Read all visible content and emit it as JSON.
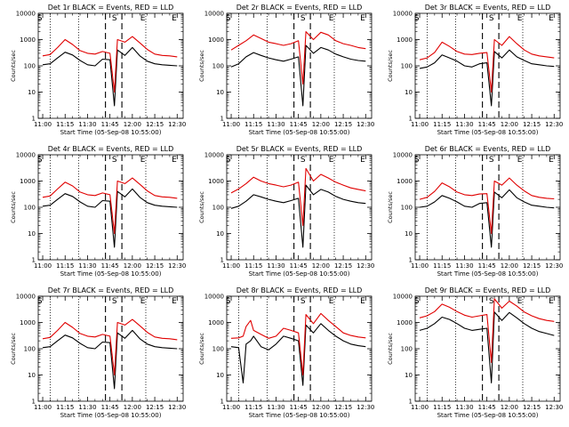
{
  "figure": {
    "colors": {
      "events": "#000000",
      "lld": "#e00000",
      "markers": "#000000"
    },
    "marker_labels": {
      "start": "S",
      "end": "E",
      "interval_start": "S",
      "interval_end": "E"
    }
  },
  "chart_data": [
    {
      "type": "line",
      "title": "Det 1r BLACK = Events, RED = LLD",
      "xlabel": "Start Time (05-Sep-08 10:55:00)",
      "ylabel": "Counts/sec",
      "log_y": true,
      "ylim": [
        1,
        10000
      ],
      "xticks": [
        "11:00",
        "11:15",
        "11:30",
        "11:45",
        "12:00",
        "12:15",
        "12:30"
      ],
      "yticks": [
        "1",
        "10",
        "100",
        "1000",
        "10000"
      ],
      "x": [
        "11:00",
        "11:05",
        "11:10",
        "11:15",
        "11:20",
        "11:25",
        "11:30",
        "11:35",
        "11:40",
        "11:45",
        "11:48",
        "11:50",
        "11:55",
        "12:00",
        "12:05",
        "12:10",
        "12:15",
        "12:20",
        "12:25",
        "12:30"
      ],
      "series": [
        {
          "name": "Events",
          "values": [
            110,
            120,
            200,
            330,
            260,
            160,
            110,
            100,
            180,
            170,
            3,
            400,
            250,
            500,
            240,
            150,
            120,
            110,
            105,
            100
          ]
        },
        {
          "name": "LLD",
          "values": [
            240,
            270,
            500,
            1000,
            650,
            380,
            300,
            280,
            350,
            300,
            10,
            1000,
            800,
            1300,
            750,
            420,
            280,
            250,
            240,
            220
          ]
        }
      ]
    },
    {
      "type": "line",
      "title": "Det 2r BLACK = Events, RED = LLD",
      "xlabel": "Start Time (05-Sep-08 10:55:00)",
      "ylabel": "Counts/sec",
      "log_y": true,
      "ylim": [
        1,
        10000
      ],
      "xticks": [
        "11:00",
        "11:15",
        "11:30",
        "11:45",
        "12:00",
        "12:15",
        "12:30"
      ],
      "yticks": [
        "1",
        "10",
        "100",
        "1000",
        "10000"
      ],
      "x": [
        "11:00",
        "11:05",
        "11:10",
        "11:15",
        "11:20",
        "11:25",
        "11:30",
        "11:35",
        "11:40",
        "11:45",
        "11:48",
        "11:50",
        "11:55",
        "12:00",
        "12:05",
        "12:10",
        "12:15",
        "12:20",
        "12:25",
        "12:30"
      ],
      "series": [
        {
          "name": "Events",
          "values": [
            90,
            120,
            220,
            320,
            250,
            200,
            170,
            150,
            180,
            220,
            3,
            600,
            300,
            500,
            400,
            280,
            220,
            180,
            160,
            150
          ]
        },
        {
          "name": "LLD",
          "values": [
            400,
            600,
            900,
            1500,
            1100,
            800,
            700,
            600,
            700,
            900,
            20,
            2000,
            1000,
            1900,
            1500,
            900,
            700,
            600,
            500,
            450
          ]
        }
      ]
    },
    {
      "type": "line",
      "title": "Det 3r BLACK = Events, RED = LLD",
      "xlabel": "Start Time (05-Sep-08 10:55:00)",
      "ylabel": "Counts/sec",
      "log_y": true,
      "ylim": [
        1,
        10000
      ],
      "xticks": [
        "11:00",
        "11:15",
        "11:30",
        "11:45",
        "12:00",
        "12:15",
        "12:30"
      ],
      "yticks": [
        "1",
        "10",
        "100",
        "1000",
        "10000"
      ],
      "x": [
        "11:00",
        "11:05",
        "11:10",
        "11:15",
        "11:20",
        "11:25",
        "11:30",
        "11:35",
        "11:40",
        "11:45",
        "11:48",
        "11:50",
        "11:55",
        "12:00",
        "12:05",
        "12:10",
        "12:15",
        "12:20",
        "12:25",
        "12:30"
      ],
      "series": [
        {
          "name": "Events",
          "values": [
            80,
            90,
            130,
            260,
            200,
            150,
            100,
            90,
            120,
            130,
            3,
            350,
            200,
            400,
            220,
            160,
            120,
            110,
            100,
            95
          ]
        },
        {
          "name": "LLD",
          "values": [
            170,
            200,
            320,
            800,
            550,
            350,
            280,
            270,
            300,
            320,
            10,
            1000,
            600,
            1300,
            700,
            400,
            280,
            240,
            220,
            200
          ]
        }
      ]
    },
    {
      "type": "line",
      "title": "Det 4r BLACK = Events, RED = LLD",
      "xlabel": "Start Time (05-Sep-08 10:55:00)",
      "ylabel": "Counts/sec",
      "log_y": true,
      "ylim": [
        1,
        10000
      ],
      "xticks": [
        "11:00",
        "11:15",
        "11:30",
        "11:45",
        "12:00",
        "12:15",
        "12:30"
      ],
      "yticks": [
        "1",
        "10",
        "100",
        "1000",
        "10000"
      ],
      "x": [
        "11:00",
        "11:05",
        "11:10",
        "11:15",
        "11:20",
        "11:25",
        "11:30",
        "11:35",
        "11:40",
        "11:45",
        "11:48",
        "11:50",
        "11:55",
        "12:00",
        "12:05",
        "12:10",
        "12:15",
        "12:20",
        "12:25",
        "12:30"
      ],
      "series": [
        {
          "name": "Events",
          "values": [
            110,
            120,
            200,
            330,
            260,
            160,
            110,
            100,
            180,
            170,
            3,
            400,
            250,
            500,
            240,
            150,
            120,
            110,
            105,
            100
          ]
        },
        {
          "name": "LLD",
          "values": [
            240,
            270,
            500,
            900,
            650,
            380,
            300,
            280,
            350,
            300,
            10,
            1000,
            800,
            1300,
            750,
            420,
            280,
            250,
            240,
            220
          ]
        }
      ]
    },
    {
      "type": "line",
      "title": "Det 5r BLACK = Events, RED = LLD",
      "xlabel": "Start Time (05-Sep-08 10:55:00)",
      "ylabel": "Counts/sec",
      "log_y": true,
      "ylim": [
        1,
        10000
      ],
      "xticks": [
        "11:00",
        "11:15",
        "11:30",
        "11:45",
        "12:00",
        "12:15",
        "12:30"
      ],
      "yticks": [
        "1",
        "10",
        "100",
        "1000",
        "10000"
      ],
      "x": [
        "11:00",
        "11:05",
        "11:10",
        "11:15",
        "11:20",
        "11:25",
        "11:30",
        "11:35",
        "11:40",
        "11:45",
        "11:48",
        "11:50",
        "11:55",
        "12:00",
        "12:05",
        "12:10",
        "12:15",
        "12:20",
        "12:25",
        "12:30"
      ],
      "series": [
        {
          "name": "Events",
          "values": [
            90,
            110,
            170,
            300,
            250,
            200,
            170,
            150,
            180,
            220,
            3,
            700,
            300,
            480,
            380,
            260,
            200,
            170,
            150,
            140
          ]
        },
        {
          "name": "LLD",
          "values": [
            350,
            500,
            800,
            1400,
            1000,
            800,
            700,
            600,
            700,
            900,
            20,
            3000,
            1000,
            1800,
            1300,
            900,
            700,
            550,
            480,
            420
          ]
        }
      ]
    },
    {
      "type": "line",
      "title": "Det 6r BLACK = Events, RED = LLD",
      "xlabel": "Start Time (05-Sep-08 10:55:00)",
      "ylabel": "Counts/sec",
      "log_y": true,
      "ylim": [
        1,
        10000
      ],
      "xticks": [
        "11:00",
        "11:15",
        "11:30",
        "11:45",
        "12:00",
        "12:15",
        "12:30"
      ],
      "yticks": [
        "1",
        "10",
        "100",
        "1000",
        "10000"
      ],
      "x": [
        "11:00",
        "11:05",
        "11:10",
        "11:15",
        "11:20",
        "11:25",
        "11:30",
        "11:35",
        "11:40",
        "11:45",
        "11:48",
        "11:50",
        "11:55",
        "12:00",
        "12:05",
        "12:10",
        "12:15",
        "12:20",
        "12:25",
        "12:30"
      ],
      "series": [
        {
          "name": "Events",
          "values": [
            100,
            110,
            160,
            280,
            220,
            160,
            110,
            100,
            140,
            150,
            3,
            380,
            230,
            460,
            230,
            160,
            120,
            110,
            100,
            95
          ]
        },
        {
          "name": "LLD",
          "values": [
            200,
            240,
            400,
            850,
            600,
            380,
            300,
            280,
            320,
            330,
            10,
            1000,
            700,
            1300,
            700,
            420,
            280,
            240,
            220,
            210
          ]
        }
      ]
    },
    {
      "type": "line",
      "title": "Det 7r BLACK = Events, RED = LLD",
      "xlabel": "Start Time (05-Sep-08 10:55:00)",
      "ylabel": "Counts/sec",
      "log_y": true,
      "ylim": [
        1,
        10000
      ],
      "xticks": [
        "11:00",
        "11:15",
        "11:30",
        "11:45",
        "12:00",
        "12:15",
        "12:30"
      ],
      "yticks": [
        "1",
        "10",
        "100",
        "1000",
        "10000"
      ],
      "x": [
        "11:00",
        "11:05",
        "11:10",
        "11:15",
        "11:20",
        "11:25",
        "11:30",
        "11:35",
        "11:40",
        "11:45",
        "11:48",
        "11:50",
        "11:55",
        "12:00",
        "12:05",
        "12:10",
        "12:15",
        "12:20",
        "12:25",
        "12:30"
      ],
      "series": [
        {
          "name": "Events",
          "values": [
            110,
            120,
            200,
            330,
            260,
            160,
            110,
            100,
            180,
            170,
            3,
            400,
            250,
            500,
            240,
            150,
            120,
            110,
            105,
            100
          ]
        },
        {
          "name": "LLD",
          "values": [
            240,
            270,
            500,
            1000,
            650,
            380,
            300,
            280,
            350,
            300,
            10,
            1000,
            800,
            1300,
            750,
            420,
            280,
            250,
            240,
            220
          ]
        }
      ]
    },
    {
      "type": "line",
      "title": "Det 8r BLACK = Events, RED = LLD",
      "xlabel": "Start Time (05-Sep-08 10:55:00)",
      "ylabel": "Counts/sec",
      "log_y": true,
      "ylim": [
        1,
        10000
      ],
      "xticks": [
        "11:00",
        "11:15",
        "11:30",
        "11:45",
        "12:00",
        "12:15",
        "12:30"
      ],
      "yticks": [
        "1",
        "10",
        "100",
        "1000",
        "10000"
      ],
      "x": [
        "11:00",
        "11:05",
        "11:08",
        "11:10",
        "11:13",
        "11:15",
        "11:20",
        "11:25",
        "11:30",
        "11:35",
        "11:40",
        "11:45",
        "11:48",
        "11:50",
        "11:55",
        "12:00",
        "12:05",
        "12:10",
        "12:15",
        "12:20",
        "12:25",
        "12:30"
      ],
      "series": [
        {
          "name": "Events",
          "values": [
            120,
            110,
            5,
            150,
            200,
            300,
            120,
            90,
            150,
            300,
            250,
            200,
            4,
            800,
            400,
            900,
            500,
            300,
            200,
            150,
            130,
            120
          ]
        },
        {
          "name": "LLD",
          "values": [
            250,
            260,
            300,
            700,
            1200,
            500,
            350,
            250,
            300,
            600,
            500,
            400,
            10,
            2000,
            900,
            2200,
            1200,
            700,
            400,
            320,
            280,
            260
          ]
        }
      ]
    },
    {
      "type": "line",
      "title": "Det 9r BLACK = Events, RED = LLD",
      "xlabel": "Start Time (05-Sep-08 10:55:00)",
      "ylabel": "Counts/sec",
      "log_y": true,
      "ylim": [
        1,
        10000
      ],
      "xticks": [
        "11:00",
        "11:15",
        "11:30",
        "11:45",
        "12:00",
        "12:15",
        "12:30"
      ],
      "yticks": [
        "1",
        "10",
        "100",
        "1000",
        "10000"
      ],
      "x": [
        "11:00",
        "11:05",
        "11:10",
        "11:15",
        "11:20",
        "11:25",
        "11:30",
        "11:35",
        "11:40",
        "11:45",
        "11:48",
        "11:50",
        "11:55",
        "12:00",
        "12:05",
        "12:10",
        "12:15",
        "12:20",
        "12:25",
        "12:30"
      ],
      "series": [
        {
          "name": "Events",
          "values": [
            500,
            600,
            900,
            1600,
            1300,
            900,
            600,
            500,
            550,
            600,
            5,
            2500,
            1200,
            2400,
            1500,
            900,
            600,
            450,
            380,
            320
          ]
        },
        {
          "name": "LLD",
          "values": [
            1500,
            1800,
            2600,
            5000,
            3800,
            2600,
            1900,
            1600,
            1800,
            2000,
            30,
            8000,
            3500,
            6500,
            4200,
            2500,
            1800,
            1400,
            1200,
            1100
          ]
        }
      ]
    }
  ]
}
